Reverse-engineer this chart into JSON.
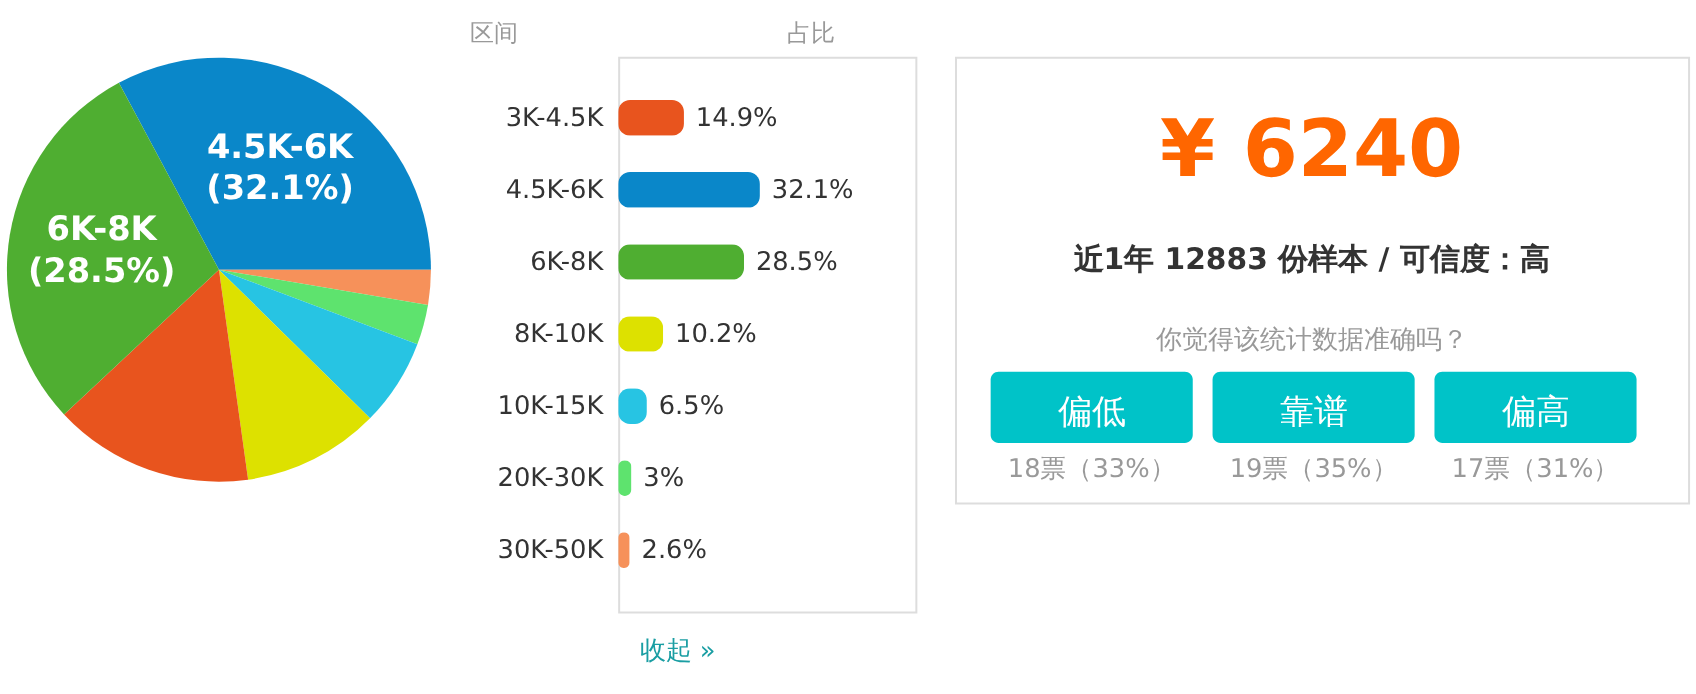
{
  "chart_data": [
    {
      "type": "pie",
      "categories": [
        "4.5K-6K",
        null,
        null,
        null,
        null,
        null,
        "6K-8K"
      ],
      "values": [
        32.1,
        2.6,
        3,
        6.5,
        10.2,
        14.9,
        28.5
      ],
      "colors": [
        "#0a87c9",
        "#f6915a",
        "#5ee36e",
        "#27c4e3",
        "#dde100",
        "#e8541e",
        "#4fae31"
      ],
      "value_labels": [
        "(32.1%)",
        null,
        null,
        null,
        null,
        null,
        "(28.5%)"
      ]
    },
    {
      "type": "bar",
      "orientation": "horizontal",
      "xlabel": "占比",
      "ylabel": "区间",
      "categories": [
        "3K-4.5K",
        "4.5K-6K",
        "6K-8K",
        "8K-10K",
        "10K-15K",
        "20K-30K",
        "30K-50K"
      ],
      "values": [
        14.9,
        32.1,
        28.5,
        10.2,
        6.5,
        3,
        2.6
      ],
      "colors": [
        "#e8541e",
        "#0a87c9",
        "#4fae31",
        "#dde100",
        "#27c4e3",
        "#5ee36e",
        "#f6915a"
      ],
      "value_labels": [
        "14.9%",
        "32.1%",
        "28.5%",
        "10.2%",
        "6.5%",
        "3%",
        "2.6%"
      ],
      "annotations": [
        "收起 »"
      ]
    },
    {
      "type": "other",
      "title": "¥ 6240",
      "subtitle": "近1年 12883 份样本 / 可信度：高",
      "annotations": [
        "你觉得该统计数据准确吗？",
        "偏低",
        "靠谱",
        "偏高",
        "18票（33%）",
        "19票（35%）",
        "17票（31%）"
      ]
    }
  ]
}
